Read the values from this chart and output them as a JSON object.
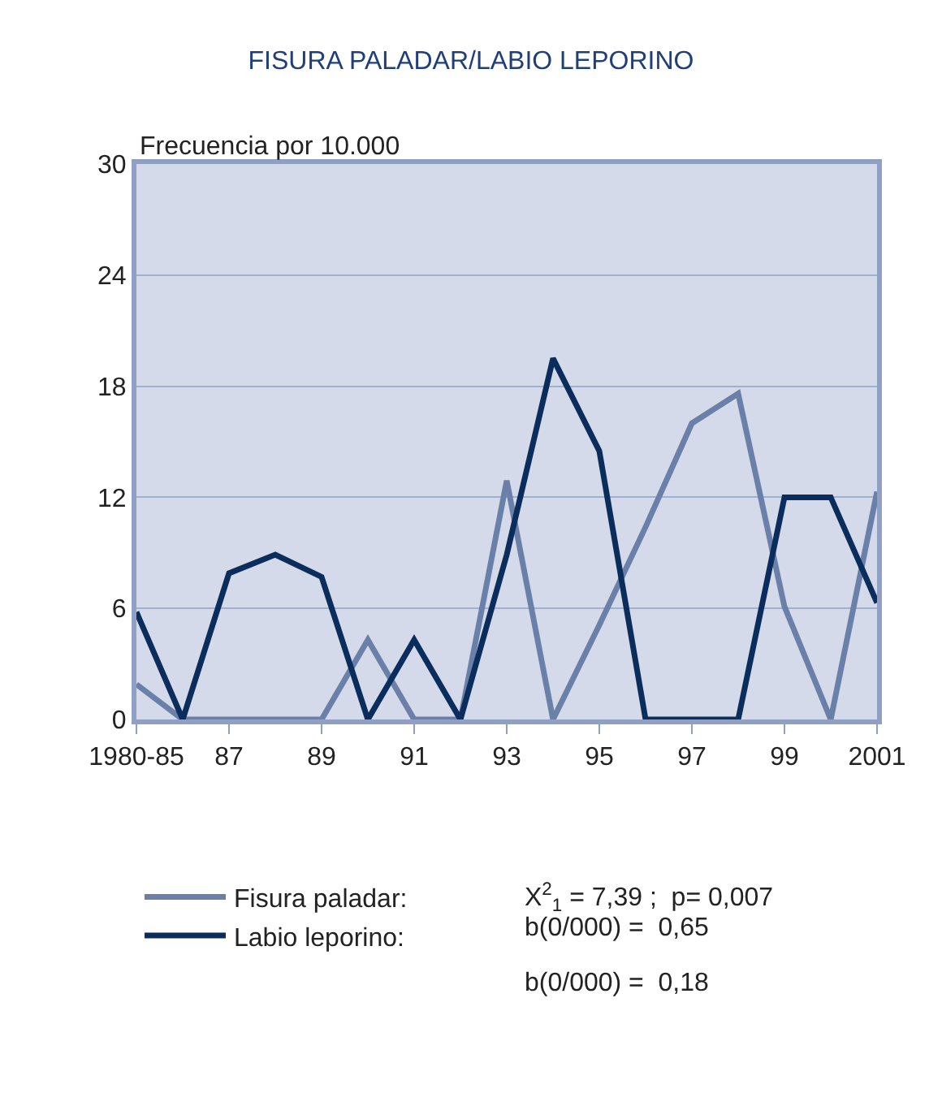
{
  "chart_data": {
    "type": "line",
    "title": "FISURA PALADAR/LABIO LEPORINO",
    "ylabel": "Frecuencia por 10.000",
    "categories": [
      "1980-85",
      null,
      "87",
      null,
      "89",
      null,
      "91",
      null,
      "93",
      null,
      "95",
      null,
      "97",
      null,
      "99",
      null,
      "2001"
    ],
    "series": [
      {
        "name": "Fisura paladar:",
        "color": "#6a80a8",
        "values": [
          1.9,
          0,
          0,
          0,
          0,
          4.3,
          0,
          0,
          12.9,
          0,
          5.1,
          10.4,
          16.0,
          17.6,
          6.1,
          0,
          12.3
        ]
      },
      {
        "name": "Labio leporino:",
        "color": "#0b2d5c",
        "values": [
          5.8,
          0,
          7.9,
          8.9,
          7.7,
          0,
          4.3,
          0,
          8.9,
          19.5,
          14.5,
          0,
          0,
          0,
          12.0,
          12.0,
          6.3
        ]
      }
    ],
    "annotations": [
      "X$^{2}$$_{1}$ = 7,39 ;  p= 0,007",
      "b(0/000) =  0,65",
      "b(0/000) =  0,18"
    ],
    "ylim": [
      0,
      30
    ],
    "yticks": [
      0,
      6,
      12,
      18,
      24,
      30
    ],
    "grid": "y",
    "legend": "bottom",
    "marker": "none",
    "line_style": "solid"
  }
}
